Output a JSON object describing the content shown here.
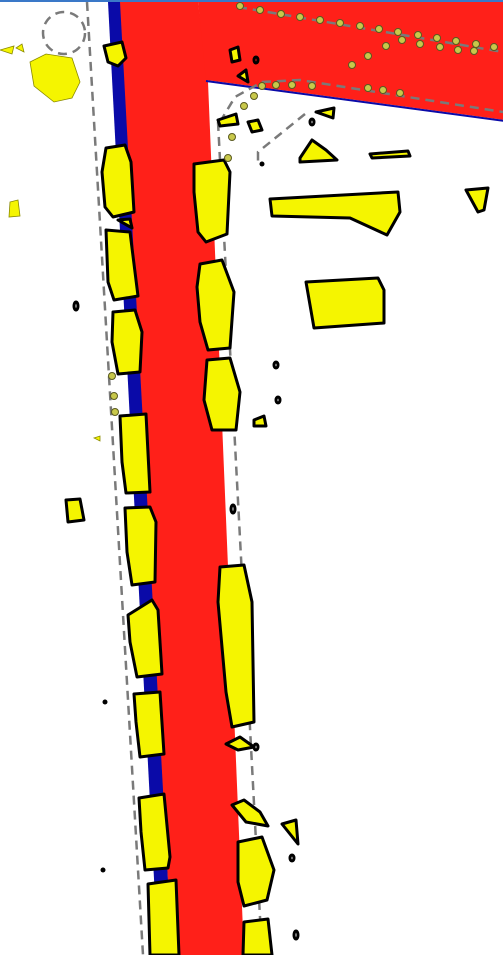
{
  "map": {
    "colors": {
      "background": "#ffffff",
      "road_fill": "#ff2019",
      "road_edge": "#0a0aa8",
      "feature_fill": "#f5f500",
      "feature_stroke": "#000000",
      "boundary_dash": "#7a7a7a",
      "point_fill": "#c8c84a",
      "frame_top": "#3a78c8"
    },
    "layers": [
      "roads",
      "yellow-polygons",
      "dashed-boundaries",
      "point-markers"
    ]
  }
}
